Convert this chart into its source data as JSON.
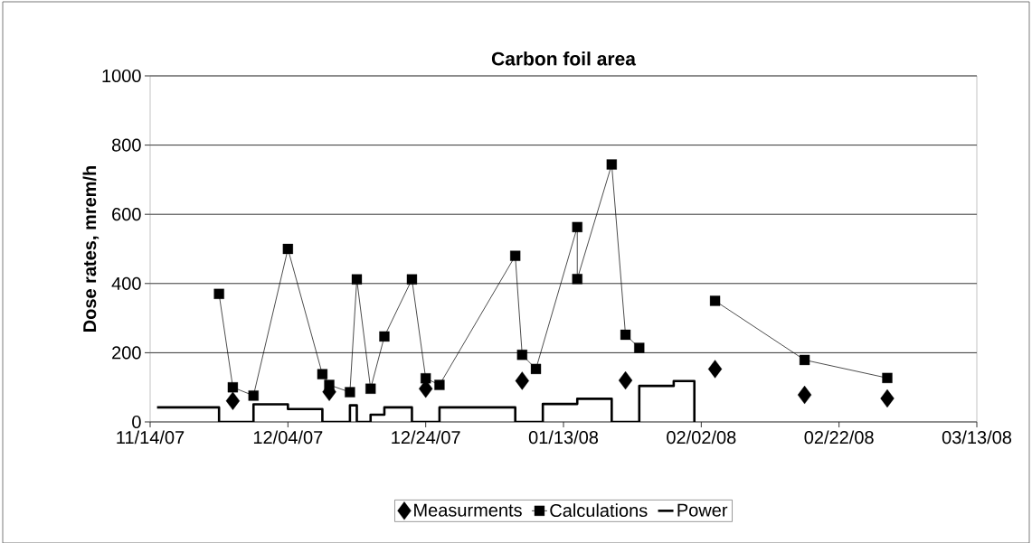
{
  "chart_data": {
    "type": "line",
    "title": "Carbon foil area",
    "ylabel": "Dose rates, mrem/h",
    "xlim": [
      "2007-11-14",
      "2008-03-13"
    ],
    "xticks": [
      {
        "value": "2007-11-14",
        "label": "11/14/07"
      },
      {
        "value": "2007-12-04",
        "label": "12/04/07"
      },
      {
        "value": "2007-12-24",
        "label": "12/24/07"
      },
      {
        "value": "2008-01-13",
        "label": "01/13/08"
      },
      {
        "value": "2008-02-02",
        "label": "02/02/08"
      },
      {
        "value": "2008-02-22",
        "label": "02/22/08"
      },
      {
        "value": "2008-03-13",
        "label": "03/13/08"
      }
    ],
    "ylim": [
      0,
      1000
    ],
    "yticks": [
      0,
      200,
      400,
      600,
      800,
      1000
    ],
    "grid": "y",
    "legend": "bottom",
    "series": [
      {
        "name": "Measurments",
        "type": "scatter",
        "marker": "diamond",
        "color": "#000000",
        "x": [
          "2007-11-26",
          "2007-12-10",
          "2007-12-24",
          "2008-01-07",
          "2008-01-22",
          "2008-02-04",
          "2008-02-17",
          "2008-02-29"
        ],
        "values": [
          61,
          87,
          96,
          119,
          120,
          153,
          78,
          68
        ]
      },
      {
        "name": "Calculations",
        "marker": "square",
        "color": "#000000",
        "x": [
          "2007-11-24",
          "2007-11-26",
          "2007-11-29",
          "2007-12-04",
          "2007-12-09",
          "2007-12-10",
          "2007-12-13",
          "2007-12-14",
          "2007-12-16",
          "2007-12-18",
          "2007-12-22",
          "2007-12-24",
          "2007-12-26",
          "2008-01-06",
          "2008-01-07",
          "2008-01-09",
          "2008-01-15",
          "2008-01-15",
          "2008-01-20",
          "2008-01-22",
          "2008-01-24",
          "2008-01-31",
          "2008-02-04",
          "2008-02-17",
          "2008-02-29"
        ],
        "values": [
          370,
          100,
          76,
          500,
          138,
          107,
          86,
          412,
          96,
          247,
          412,
          126,
          107,
          480,
          194,
          153,
          563,
          413,
          744,
          252,
          214,
          null,
          350,
          179,
          127
        ]
      },
      {
        "name": "Power",
        "type": "step",
        "marker": "none",
        "color": "#000000",
        "x": [
          "2007-11-15",
          "2007-11-24",
          "2007-11-29",
          "2007-12-04",
          "2007-12-09",
          "2007-12-13",
          "2007-12-14",
          "2007-12-16",
          "2007-12-18",
          "2007-12-22",
          "2007-12-26",
          "2008-01-06",
          "2008-01-10",
          "2008-01-15",
          "2008-01-20",
          "2008-01-24",
          "2008-01-29",
          "2008-02-01"
        ],
        "values": [
          42,
          0,
          51,
          37,
          0,
          48,
          0,
          21,
          42,
          0,
          42,
          0,
          52,
          67,
          0,
          104,
          118,
          0
        ]
      }
    ]
  }
}
